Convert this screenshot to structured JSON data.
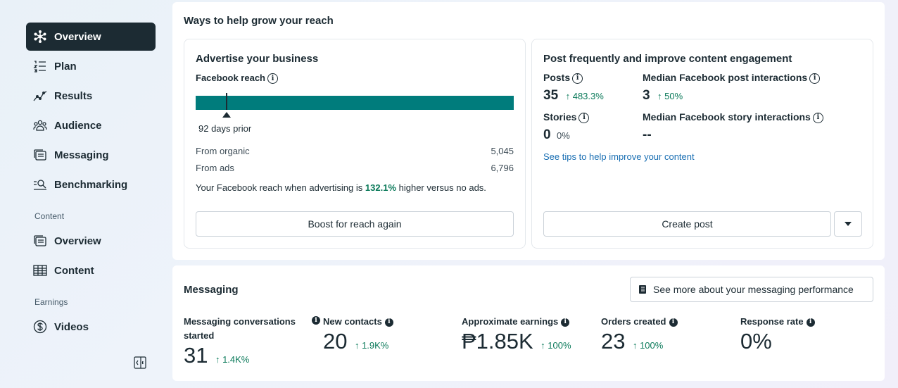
{
  "sidebar": {
    "items": [
      {
        "label": "Overview",
        "icon": "overview-icon",
        "active": true
      },
      {
        "label": "Plan",
        "icon": "plan-icon"
      },
      {
        "label": "Results",
        "icon": "results-icon"
      },
      {
        "label": "Audience",
        "icon": "audience-icon"
      },
      {
        "label": "Messaging",
        "icon": "messaging-icon"
      },
      {
        "label": "Benchmarking",
        "icon": "benchmarking-icon"
      }
    ],
    "content_label": "Content",
    "content_items": [
      {
        "label": "Overview",
        "icon": "content-overview-icon"
      },
      {
        "label": "Content",
        "icon": "table-icon"
      }
    ],
    "earnings_label": "Earnings",
    "earnings_items": [
      {
        "label": "Videos",
        "icon": "dollar-icon"
      }
    ]
  },
  "reach": {
    "title": "Ways to help grow your reach",
    "advertise": {
      "title": "Advertise your business",
      "fb_reach_label": "Facebook reach",
      "marker_label": "92 days prior",
      "organic_label": "From organic",
      "organic_value": "5,045",
      "ads_label": "From ads",
      "ads_value": "6,796",
      "summary_pre": "Your Facebook reach when advertising is",
      "summary_pct": "132.1%",
      "summary_post": "higher versus no ads.",
      "button": "Boost for reach again"
    },
    "post": {
      "title": "Post frequently and improve content engagement",
      "posts_label": "Posts",
      "posts_value": "35",
      "posts_change": "483.3%",
      "median_post_label": "Median Facebook post interactions",
      "median_post_value": "3",
      "median_post_change": "50%",
      "stories_label": "Stories",
      "stories_value": "0",
      "stories_change": "0%",
      "median_story_label": "Median Facebook story interactions",
      "median_story_value": "--",
      "tips_link": "See tips to help improve your content",
      "button": "Create post"
    }
  },
  "messaging": {
    "title": "Messaging",
    "see_more": "See more about your messaging performance",
    "metrics": [
      {
        "label": "Messaging conversations started",
        "value": "31",
        "change": "1.4K%"
      },
      {
        "label": "New contacts",
        "value": "20",
        "change": "1.9K%"
      },
      {
        "label": "Approximate earnings",
        "value": "₱1.85K",
        "change": "100%"
      },
      {
        "label": "Orders created",
        "value": "23",
        "change": "100%"
      },
      {
        "label": "Response rate",
        "value": "0%",
        "change": ""
      }
    ]
  },
  "colors": {
    "accent": "#007c7c",
    "positive": "#0b7a5a",
    "link": "#1a6fb3",
    "dark": "#1c2b33"
  }
}
